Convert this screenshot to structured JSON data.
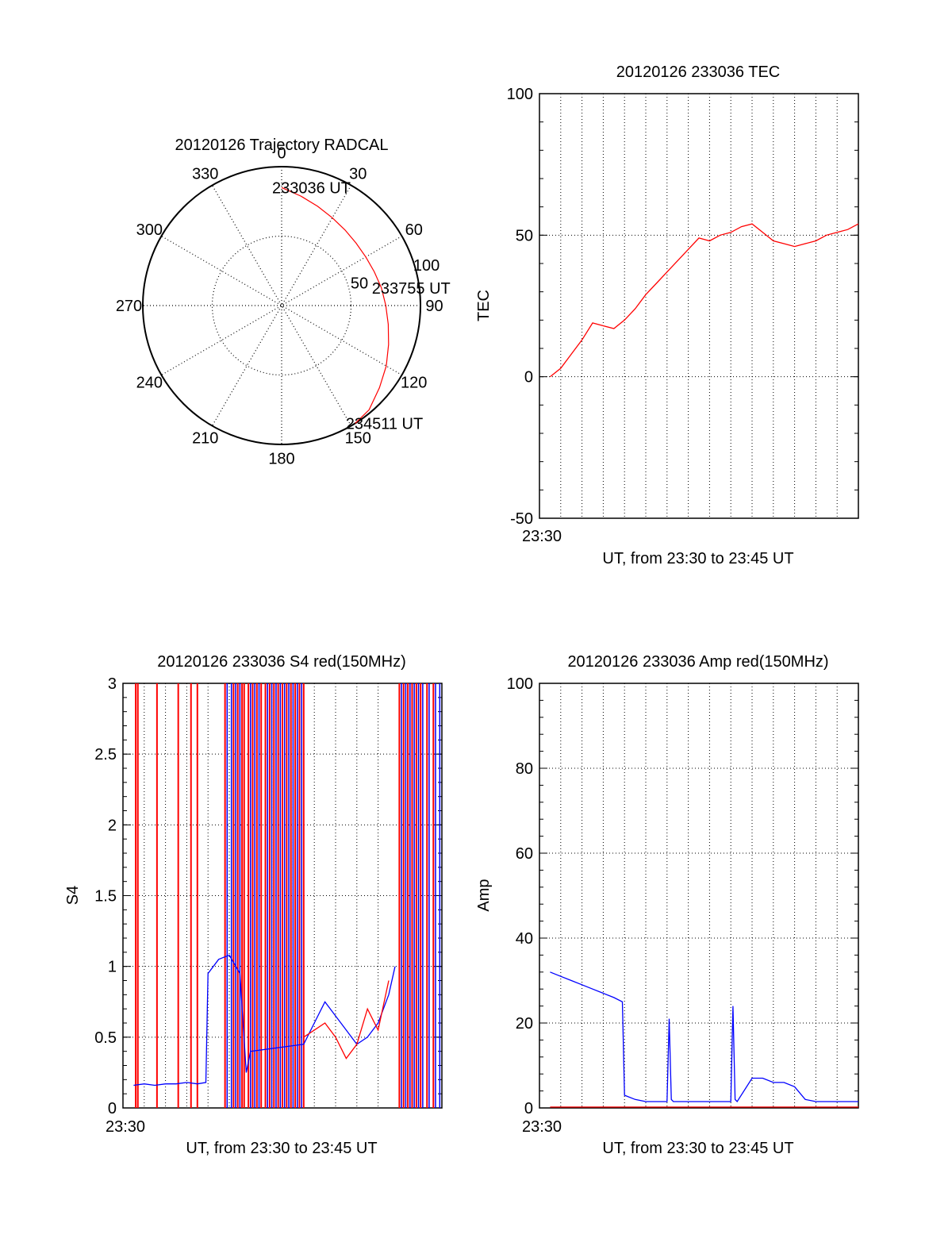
{
  "chart_data": [
    {
      "type": "polar",
      "title": "20120126 Trajectory RADCAL",
      "radial_range": [
        0,
        100
      ],
      "radial_ticks": [
        50,
        100
      ],
      "radial_tick_labels": [
        "50",
        "100"
      ],
      "angle_labels": [
        "0",
        "30",
        "60",
        "90",
        "120",
        "150",
        "180",
        "210",
        "240",
        "270",
        "300",
        "330"
      ],
      "grid": true,
      "series": [
        {
          "color": "#ff0000",
          "points": [
            [
              0,
              85
            ],
            [
              10,
              80
            ],
            [
              20,
              76
            ],
            [
              30,
              73
            ],
            [
              40,
              71
            ],
            [
              50,
              70
            ],
            [
              60,
              70
            ],
            [
              70,
              71
            ],
            [
              80,
              73
            ],
            [
              90,
              75
            ],
            [
              100,
              78
            ],
            [
              110,
              82
            ],
            [
              120,
              87
            ],
            [
              130,
              92
            ],
            [
              140,
              98
            ],
            [
              148,
              100
            ]
          ]
        }
      ],
      "annotations": [
        {
          "text": "233036 UT",
          "az": 0,
          "zen": 85
        },
        {
          "text": "233755 UT",
          "az": 80,
          "zen": 73
        },
        {
          "text": "234511 UT",
          "az": 148,
          "zen": 100
        }
      ]
    },
    {
      "type": "line",
      "title": "20120126 233036 TEC",
      "xlabel": "UT, from 23:30 to 23:45 UT",
      "ylabel": "TEC",
      "xtick_labels": [
        "23:30"
      ],
      "xlim": [
        0,
        15
      ],
      "ylim": [
        -50,
        100
      ],
      "yticks": [
        -50,
        0,
        50,
        100
      ],
      "grid": true,
      "series": [
        {
          "color": "#ff0000",
          "x": [
            0.5,
            1.0,
            1.5,
            2.0,
            2.5,
            3.0,
            3.5,
            4.0,
            4.5,
            5.0,
            5.5,
            6.0,
            6.5,
            7.0,
            7.5,
            8.0,
            8.5,
            9.0,
            9.5,
            10.0,
            10.5,
            11.0,
            11.5,
            12.0,
            12.5,
            13.0,
            13.5,
            14.0,
            14.5,
            15.0
          ],
          "y": [
            0,
            3,
            8,
            13,
            19,
            18,
            17,
            20,
            24,
            29,
            33,
            37,
            41,
            45,
            49,
            48,
            50,
            51,
            53,
            54,
            51,
            48,
            47,
            46,
            47,
            48,
            50,
            51,
            52,
            54
          ]
        }
      ]
    },
    {
      "type": "line",
      "title": "20120126 233036 S4 red(150MHz)",
      "xlabel": "UT, from 23:30 to 23:45 UT",
      "ylabel": "S4",
      "xtick_labels": [
        "23:30"
      ],
      "xlim": [
        0,
        15
      ],
      "ylim": [
        0,
        3
      ],
      "yticks": [
        0,
        0.5,
        1,
        1.5,
        2,
        2.5,
        3
      ],
      "ytick_labels": [
        "0",
        "0.5",
        "1",
        "1.5",
        "2",
        "2.5",
        "3"
      ],
      "grid": true,
      "series": [
        {
          "color": "#0000ff",
          "x": [
            0.5,
            1,
            1.5,
            2,
            2.5,
            3,
            3.5,
            3.9,
            4.0,
            4.5,
            5.0,
            5.5,
            5.8,
            6,
            8.5,
            9,
            9.5,
            10,
            10.5,
            11,
            11.5,
            12,
            12.5,
            12.8
          ],
          "y": [
            0.16,
            0.17,
            0.16,
            0.17,
            0.17,
            0.18,
            0.17,
            0.18,
            0.95,
            1.05,
            1.08,
            0.95,
            0.25,
            0.4,
            0.45,
            0.6,
            0.75,
            0.65,
            0.55,
            0.45,
            0.5,
            0.6,
            0.8,
            1.0
          ]
        },
        {
          "color": "#ff0000",
          "x": [
            8.5,
            9,
            9.5,
            10,
            10.5,
            11,
            11.5,
            12,
            12.5
          ],
          "y": [
            0.5,
            0.55,
            0.6,
            0.5,
            0.35,
            0.45,
            0.7,
            0.55,
            0.9
          ]
        }
      ],
      "spikes": {
        "red_x": [
          0.6,
          0.7,
          1.6,
          2.6,
          3.2,
          3.5,
          4.8,
          5.2,
          5.4,
          5.6,
          5.7,
          5.9,
          6.1,
          6.3,
          6.5,
          6.7,
          6.9,
          7.1,
          7.3,
          7.5,
          7.7,
          7.9,
          8.1,
          8.3,
          8.5,
          13.0,
          13.2,
          13.4,
          13.6,
          13.8,
          14.0,
          14.3,
          14.6
        ],
        "blue_x": [
          4.9,
          5.1,
          5.3,
          5.5,
          6.0,
          6.2,
          6.4,
          6.8,
          7.0,
          7.2,
          7.4,
          7.6,
          7.8,
          8.0,
          8.2,
          8.4,
          13.1,
          13.3,
          13.5,
          13.7,
          13.9,
          14.1,
          14.4,
          14.7,
          14.9
        ]
      }
    },
    {
      "type": "line",
      "title": "20120126 233036 Amp red(150MHz)",
      "xlabel": "UT, from 23:30 to 23:45 UT",
      "ylabel": "Amp",
      "xtick_labels": [
        "23:30"
      ],
      "xlim": [
        0,
        15
      ],
      "ylim": [
        0,
        100
      ],
      "yticks": [
        0,
        20,
        40,
        60,
        80,
        100
      ],
      "grid": true,
      "series": [
        {
          "color": "#0000ff",
          "x": [
            0.5,
            1.0,
            1.5,
            2.0,
            2.5,
            3.0,
            3.5,
            3.9,
            4.0,
            4.5,
            5.0,
            5.5,
            6.0,
            6.1,
            6.2,
            6.3,
            7.0,
            8.0,
            9.0,
            9.1,
            9.2,
            9.3,
            10.0,
            10.5,
            11.0,
            11.5,
            12.0,
            12.5,
            13.0,
            13.5,
            14.0,
            15.0
          ],
          "y": [
            32,
            31,
            30,
            29,
            28,
            27,
            26,
            25,
            3,
            2,
            1.5,
            1.5,
            1.5,
            21,
            2,
            1.5,
            1.5,
            1.5,
            1.5,
            24,
            2,
            1.5,
            7,
            7,
            6,
            6,
            5,
            2,
            1.5,
            1.5,
            1.5,
            1.5
          ]
        },
        {
          "color": "#ff0000",
          "x": [
            0.5,
            3.9,
            6.0,
            15.0
          ],
          "y": [
            0.2,
            0.2,
            0.2,
            0.2
          ]
        }
      ]
    }
  ]
}
